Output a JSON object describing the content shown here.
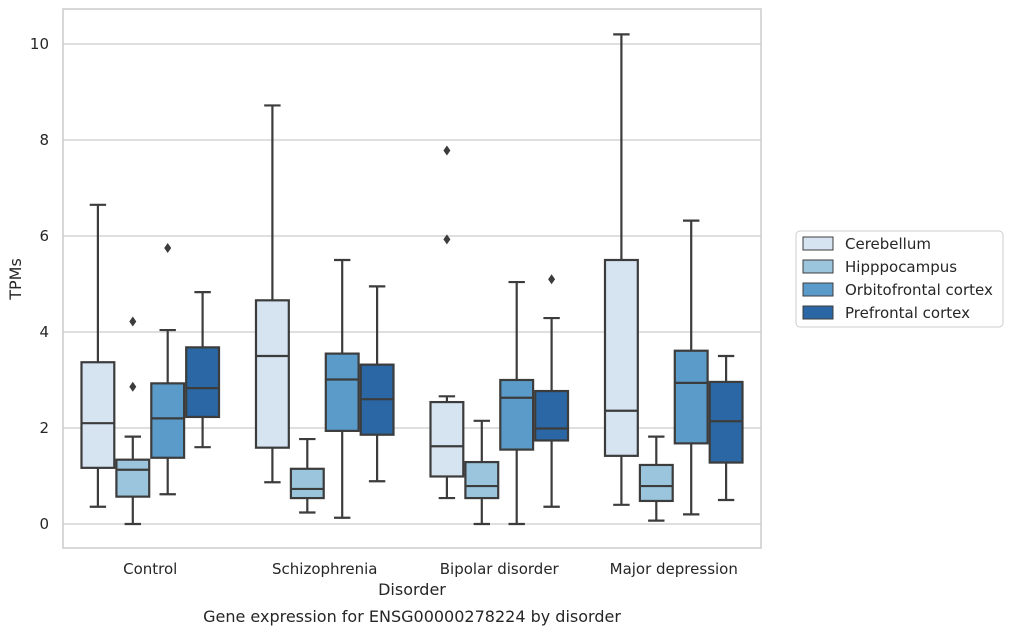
{
  "chart_data": {
    "type": "box",
    "title": "",
    "caption": "Gene expression for ENSG00000278224 by disorder",
    "xlabel": "Disorder",
    "ylabel": "TPMs",
    "ylim": [
      -0.45,
      10.7
    ],
    "yticks": [
      0,
      2,
      4,
      6,
      8,
      10
    ],
    "grid": "horizontal",
    "legend_position": "right",
    "categories": [
      "Control",
      "Schizophrenia",
      "Bipolar disorder",
      "Major depression"
    ],
    "series": [
      {
        "name": "Cerebellum",
        "color": "#d6e4f2",
        "boxes": [
          {
            "whislo": 0.36,
            "q1": 1.17,
            "med": 2.1,
            "q3": 3.37,
            "whishi": 6.65,
            "fliers": []
          },
          {
            "whislo": 0.87,
            "q1": 1.59,
            "med": 3.5,
            "q3": 4.66,
            "whishi": 8.72,
            "fliers": []
          },
          {
            "whislo": 0.54,
            "q1": 0.99,
            "med": 1.62,
            "q3": 2.54,
            "whishi": 2.66,
            "fliers": [
              7.78,
              5.93
            ]
          },
          {
            "whislo": 0.4,
            "q1": 1.42,
            "med": 2.36,
            "q3": 5.5,
            "whishi": 10.2,
            "fliers": []
          }
        ]
      },
      {
        "name": "Hipppocampus",
        "color": "#9ac5dd",
        "boxes": [
          {
            "whislo": 0.0,
            "q1": 0.57,
            "med": 1.13,
            "q3": 1.34,
            "whishi": 1.82,
            "fliers": [
              4.22,
              2.86
            ]
          },
          {
            "whislo": 0.24,
            "q1": 0.54,
            "med": 0.73,
            "q3": 1.15,
            "whishi": 1.77,
            "fliers": []
          },
          {
            "whislo": 0.0,
            "q1": 0.54,
            "med": 0.79,
            "q3": 1.29,
            "whishi": 2.15,
            "fliers": []
          },
          {
            "whislo": 0.07,
            "q1": 0.48,
            "med": 0.79,
            "q3": 1.23,
            "whishi": 1.82,
            "fliers": []
          }
        ]
      },
      {
        "name": "Orbitofrontal cortex",
        "color": "#5a9bc9",
        "boxes": [
          {
            "whislo": 0.62,
            "q1": 1.38,
            "med": 2.2,
            "q3": 2.93,
            "whishi": 4.04,
            "fliers": [
              5.75
            ]
          },
          {
            "whislo": 0.13,
            "q1": 1.94,
            "med": 3.01,
            "q3": 3.55,
            "whishi": 5.5,
            "fliers": []
          },
          {
            "whislo": 0.0,
            "q1": 1.55,
            "med": 2.63,
            "q3": 3.0,
            "whishi": 5.04,
            "fliers": []
          },
          {
            "whislo": 0.2,
            "q1": 1.68,
            "med": 2.94,
            "q3": 3.61,
            "whishi": 6.32,
            "fliers": []
          }
        ]
      },
      {
        "name": "Prefrontal cortex",
        "color": "#2a67a4",
        "boxes": [
          {
            "whislo": 1.6,
            "q1": 2.23,
            "med": 2.83,
            "q3": 3.68,
            "whishi": 4.83,
            "fliers": []
          },
          {
            "whislo": 0.89,
            "q1": 1.86,
            "med": 2.6,
            "q3": 3.32,
            "whishi": 4.95,
            "fliers": []
          },
          {
            "whislo": 0.36,
            "q1": 1.74,
            "med": 1.99,
            "q3": 2.77,
            "whishi": 4.29,
            "fliers": [
              5.1
            ]
          },
          {
            "whislo": 0.5,
            "q1": 1.28,
            "med": 2.14,
            "q3": 2.96,
            "whishi": 3.5,
            "fliers": []
          }
        ]
      }
    ]
  }
}
